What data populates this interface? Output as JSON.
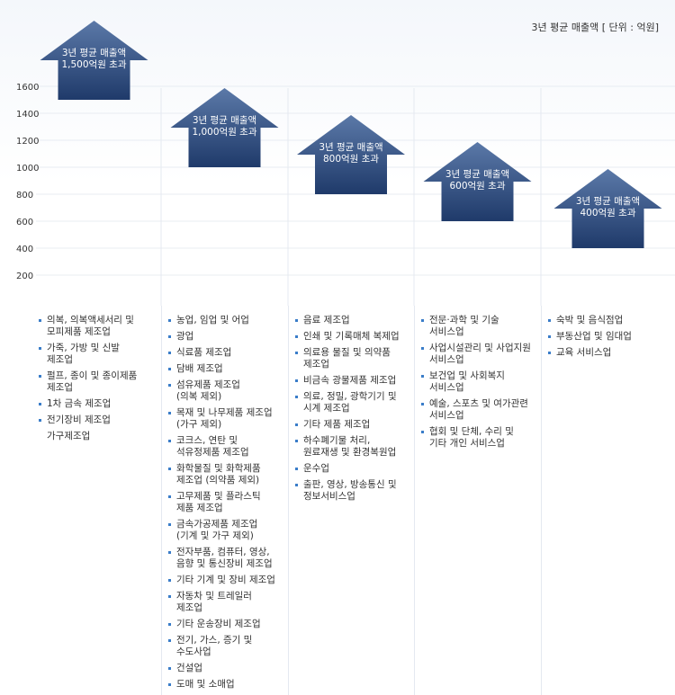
{
  "chart_data": {
    "type": "bar",
    "unit_label": "3년 평균 매출액 [ 단위 : 억원]",
    "yticks": [
      200,
      400,
      600,
      800,
      1000,
      1200,
      1400,
      1600
    ],
    "ylim": [
      100,
      1700
    ],
    "categories": [
      "col1",
      "col2",
      "col3",
      "col4",
      "col5"
    ],
    "values": [
      1500,
      1000,
      800,
      600,
      400
    ],
    "arrow_labels": [
      [
        "3년 평균 매출액",
        "1,500억원 초과"
      ],
      [
        "3년 평균 매출액",
        "1,000억원 초과"
      ],
      [
        "3년 평균 매출액",
        "800억원 초과"
      ],
      [
        "3년 평균 매출액",
        "600억원 초과"
      ],
      [
        "3년 평균 매출액",
        "400억원 초과"
      ]
    ],
    "colors": {
      "arrow_top": "#5b79a8",
      "arrow_bottom": "#1f3a6a",
      "grid": "#e8ecf2",
      "divider": "#e4e9f0"
    }
  },
  "industries": [
    [
      {
        "text": "의복, 의복액세서리 및\n모피제품 제조업",
        "bullet": true
      },
      {
        "text": "가죽, 가방 및 신발\n제조업",
        "bullet": true
      },
      {
        "text": "펄프, 종이 및 종이제품\n제조업",
        "bullet": true
      },
      {
        "text": "1차 금속 제조업",
        "bullet": true
      },
      {
        "text": "전기장비 제조업",
        "bullet": true
      },
      {
        "text": "가구제조업",
        "bullet": false
      }
    ],
    [
      {
        "text": "농업, 임업 및 어업",
        "bullet": true
      },
      {
        "text": "광업",
        "bullet": true
      },
      {
        "text": "식료품 제조업",
        "bullet": true
      },
      {
        "text": "담배 제조업",
        "bullet": true
      },
      {
        "text": "섬유제품 제조업\n(의복 제외)",
        "bullet": true
      },
      {
        "text": "목재 및 나무제품 제조업\n(가구 제외)",
        "bullet": true
      },
      {
        "text": "코크스, 연탄 및\n석유정제품 제조업",
        "bullet": true
      },
      {
        "text": "화학물질 및 화학제품\n제조업 (의약품 제외)",
        "bullet": true
      },
      {
        "text": "고무제품 및 플라스틱\n제품 제조업",
        "bullet": true
      },
      {
        "text": "금속가공제품 제조업\n(기계 및 가구 제외)",
        "bullet": true
      },
      {
        "text": "전자부품, 컴퓨터, 영상,\n음향 및 통신장비 제조업",
        "bullet": true
      },
      {
        "text": "기타 기계 및 장비 제조업",
        "bullet": true
      },
      {
        "text": "자동차 및 트레일러\n제조업",
        "bullet": true
      },
      {
        "text": "기타 운송장비 제조업",
        "bullet": true
      },
      {
        "text": "전기, 가스, 증기 및\n수도사업",
        "bullet": true
      },
      {
        "text": "건설업",
        "bullet": true
      },
      {
        "text": "도매 및 소매업",
        "bullet": true
      }
    ],
    [
      {
        "text": "음료 제조업",
        "bullet": true
      },
      {
        "text": "인쇄 및 기록매체 복제업",
        "bullet": true
      },
      {
        "text": "의료용 물질 및 의약품\n제조업",
        "bullet": true
      },
      {
        "text": "비금속 광물제품 제조업",
        "bullet": true
      },
      {
        "text": "의료, 정밀, 광학기기 및\n시계 제조업",
        "bullet": true
      },
      {
        "text": "기타 제품 제조업",
        "bullet": true
      },
      {
        "text": "하수폐기물 처리,\n원료재생 및 환경복원업",
        "bullet": true
      },
      {
        "text": "운수업",
        "bullet": true
      },
      {
        "text": "출판, 영상, 방송통신 및\n정보서비스업",
        "bullet": true
      }
    ],
    [
      {
        "text": "전문·과학 및 기술\n서비스업",
        "bullet": true
      },
      {
        "text": "사업시설관리 및 사업지원\n서비스업",
        "bullet": true
      },
      {
        "text": "보건업 및 사회복지\n서비스업",
        "bullet": true
      },
      {
        "text": "예술, 스포츠 및 여가관련\n서비스업",
        "bullet": true
      },
      {
        "text": "협회 및 단체, 수리 및\n기타 개인 서비스업",
        "bullet": true
      }
    ],
    [
      {
        "text": "숙박 및 음식점업",
        "bullet": true
      },
      {
        "text": "부동산업 및 임대업",
        "bullet": true
      },
      {
        "text": "교육 서비스업",
        "bullet": true
      }
    ]
  ]
}
